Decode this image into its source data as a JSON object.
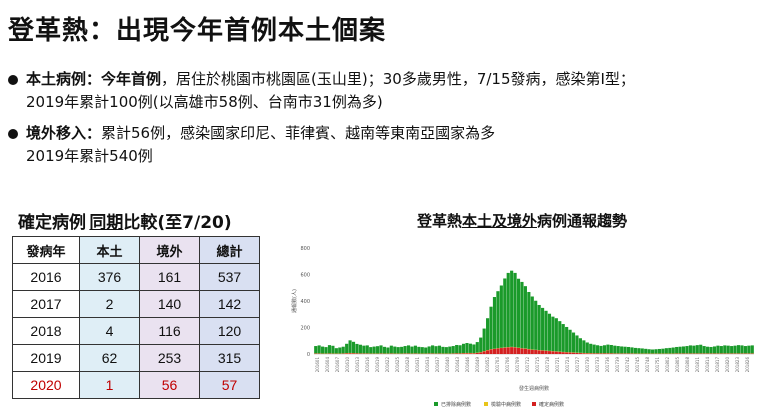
{
  "title": "登革熱：出現今年首例本土個案",
  "bullets": [
    {
      "label": "本土病例：",
      "lead_bold": "今年首例",
      "text": "，居住於桃園市桃園區(玉山里)；30多歲男性，7/15發病，感染第I型；",
      "cont": "2019年累計100例(以高雄市58例、台南市31例為多)"
    },
    {
      "label": "境外移入：",
      "lead_bold": "",
      "text": "累計56例，感染國家印尼、菲律賓、越南等東南亞國家為多",
      "cont": "2019年累計540例"
    }
  ],
  "table": {
    "title_a": "確定病例",
    "title_b": "同期",
    "title_c": "比較(至7/20)",
    "headers": [
      "發病年",
      "本土",
      "境外",
      "總計"
    ],
    "rows": [
      [
        "2016",
        "376",
        "161",
        "537"
      ],
      [
        "2017",
        "2",
        "140",
        "142"
      ],
      [
        "2018",
        "4",
        "116",
        "120"
      ],
      [
        "2019",
        "62",
        "253",
        "315"
      ],
      [
        "2020",
        "1",
        "56",
        "57"
      ]
    ],
    "highlight_color": "#c00000"
  },
  "chart": {
    "title_a": "登革熱",
    "title_b": "本土及境外",
    "title_c": "病例通報趨勢"
  },
  "chart_data": {
    "type": "bar",
    "stacked": true,
    "ylim": [
      0,
      800
    ],
    "yticks": [
      0,
      200,
      400,
      600,
      800
    ],
    "ylabel": "通報數(人)",
    "xlabel": "發生週病例數",
    "xtick_labels": [
      "201601",
      "201604",
      "201607",
      "201610",
      "201613",
      "201616",
      "201619",
      "201622",
      "201625",
      "201628",
      "201631",
      "201634",
      "201637",
      "201640",
      "201643",
      "201646",
      "201649",
      "201652",
      "201703",
      "201706",
      "201709",
      "201712",
      "201715",
      "201718",
      "201721",
      "201724",
      "201727",
      "201730",
      "201733",
      "201736",
      "201739",
      "201742",
      "201745",
      "201748",
      "201751",
      "201802",
      "201805",
      "201808",
      "201811",
      "201814",
      "201817",
      "201820",
      "201823",
      "201826"
    ],
    "series": [
      {
        "name": "已排除病例數",
        "color": "#1a9a2a",
        "values": [
          55,
          60,
          52,
          48,
          62,
          58,
          40,
          45,
          50,
          70,
          95,
          85,
          70,
          65,
          58,
          60,
          48,
          52,
          55,
          60,
          50,
          45,
          58,
          52,
          48,
          50,
          55,
          60,
          52,
          58,
          50,
          48,
          45,
          52,
          60,
          55,
          58,
          50,
          48,
          52,
          55,
          62,
          60,
          70,
          75,
          70,
          65,
          80,
          110,
          170,
          240,
          320,
          390,
          430,
          470,
          520,
          560,
          575,
          560,
          520,
          500,
          470,
          430,
          400,
          370,
          340,
          320,
          300,
          280,
          260,
          250,
          230,
          210,
          190,
          170,
          150,
          130,
          110,
          95,
          80,
          70,
          65,
          60,
          55,
          60,
          65,
          62,
          58,
          55,
          52,
          50,
          48,
          45,
          42,
          40,
          38,
          35,
          32,
          30,
          32,
          34,
          36,
          40,
          42,
          45,
          48,
          50,
          52,
          55,
          60,
          58,
          62,
          65,
          55,
          50,
          48,
          52,
          58,
          55,
          60,
          58,
          55,
          58,
          62,
          60,
          55,
          58,
          60
        ]
      },
      {
        "name": "檢驗中病例數",
        "color": "#e8c51a",
        "values": [
          2,
          2,
          2,
          2,
          2,
          2,
          2,
          2,
          2,
          2,
          2,
          2,
          2,
          2,
          2,
          2,
          2,
          2,
          2,
          2,
          2,
          2,
          2,
          2,
          2,
          2,
          2,
          2,
          2,
          2,
          2,
          2,
          2,
          2,
          2,
          2,
          2,
          2,
          2,
          2,
          2,
          2,
          2,
          2,
          2,
          2,
          2,
          2,
          2,
          2,
          2,
          2,
          2,
          2,
          2,
          2,
          2,
          2,
          2,
          2,
          2,
          2,
          2,
          2,
          2,
          2,
          2,
          2,
          2,
          2,
          2,
          2,
          2,
          2,
          2,
          2,
          2,
          2,
          2,
          2,
          2,
          2,
          2,
          2,
          2,
          2,
          2,
          2,
          2,
          2,
          2,
          2,
          2,
          2,
          2,
          2,
          2,
          2,
          2,
          2,
          2,
          2,
          2,
          2,
          2,
          2,
          2,
          2,
          2,
          2,
          2,
          2,
          2,
          2,
          2,
          2,
          2,
          2,
          2,
          2,
          2,
          2,
          2,
          2,
          2,
          2,
          2,
          2
        ]
      },
      {
        "name": "確定病例數",
        "color": "#d42020",
        "values": [
          3,
          3,
          2,
          2,
          3,
          2,
          2,
          2,
          3,
          5,
          6,
          5,
          4,
          3,
          3,
          3,
          2,
          2,
          2,
          3,
          2,
          2,
          3,
          2,
          2,
          2,
          3,
          3,
          2,
          3,
          2,
          2,
          2,
          3,
          3,
          2,
          3,
          2,
          2,
          2,
          3,
          4,
          4,
          5,
          6,
          6,
          5,
          8,
          12,
          20,
          28,
          35,
          38,
          42,
          45,
          48,
          50,
          52,
          50,
          46,
          42,
          40,
          36,
          32,
          30,
          28,
          26,
          24,
          22,
          20,
          18,
          16,
          14,
          12,
          11,
          10,
          8,
          7,
          6,
          5,
          5,
          4,
          4,
          4,
          4,
          4,
          4,
          3,
          3,
          3,
          3,
          3,
          3,
          2,
          2,
          2,
          2,
          2,
          2,
          2,
          2,
          2,
          2,
          2,
          2,
          3,
          3,
          3,
          3,
          3,
          3,
          3,
          3,
          3,
          3,
          3,
          3,
          3,
          3,
          3,
          3,
          3,
          3,
          3,
          3,
          3,
          3,
          3
        ]
      }
    ]
  }
}
